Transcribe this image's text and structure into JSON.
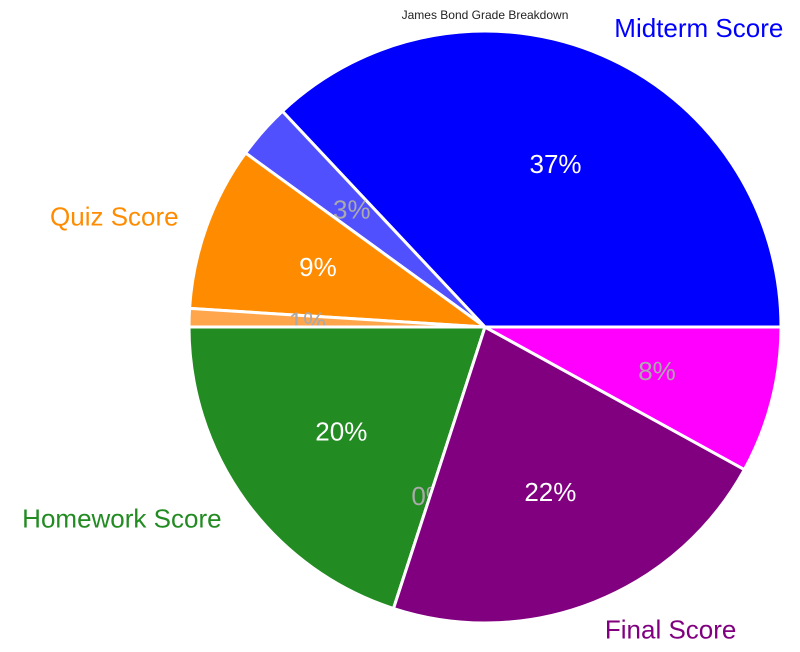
{
  "chart_data": {
    "type": "pie",
    "title": "James Bond Grade Breakdown",
    "slices": [
      {
        "label": "Midterm Score",
        "value": 37,
        "pct_label": "37%",
        "color": "#0000ff",
        "label_color": "#0000ff",
        "pct_color": "#ffffff"
      },
      {
        "label": "",
        "value": 3,
        "pct_label": "3%",
        "color": "#5050ff",
        "label_color": "",
        "pct_color": "#aaaaaa"
      },
      {
        "label": "Quiz Score",
        "value": 9,
        "pct_label": "9%",
        "color": "#ff8c00",
        "label_color": "#ff8c00",
        "pct_color": "#ffffff"
      },
      {
        "label": "",
        "value": 1,
        "pct_label": "1%",
        "color": "#ffa64d",
        "label_color": "",
        "pct_color": "#aaaaaa"
      },
      {
        "label": "Homework Score",
        "value": 20,
        "pct_label": "20%",
        "color": "#228b22",
        "label_color": "#228b22",
        "pct_color": "#ffffff"
      },
      {
        "label": "",
        "value": 0,
        "pct_label": "0%",
        "color": "#55aa55",
        "label_color": "",
        "pct_color": "#aaaaaa"
      },
      {
        "label": "Final Score",
        "value": 22,
        "pct_label": "22%",
        "color": "#800080",
        "label_color": "#800080",
        "pct_color": "#ffffff"
      },
      {
        "label": "",
        "value": 8,
        "pct_label": "8%",
        "color": "#ff00ff",
        "label_color": "",
        "pct_color": "#aaaaaa"
      }
    ]
  }
}
